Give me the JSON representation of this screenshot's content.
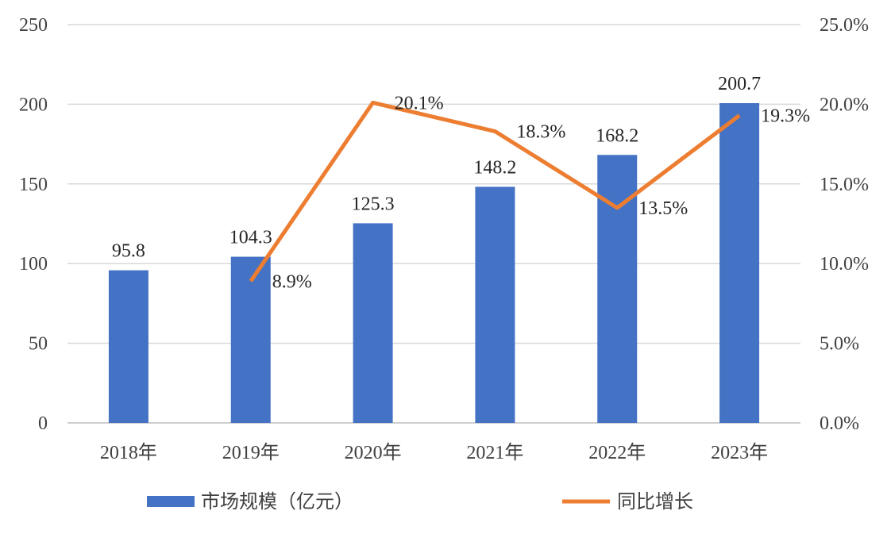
{
  "chart_data": {
    "type": "bar",
    "categories": [
      "2018年",
      "2019年",
      "2020年",
      "2021年",
      "2022年",
      "2023年"
    ],
    "series": [
      {
        "name": "市场规模（亿元）",
        "type": "bar",
        "axis": "left",
        "color": "#4472C4",
        "values": [
          95.8,
          104.3,
          125.3,
          148.2,
          168.2,
          200.7
        ]
      },
      {
        "name": "同比增长",
        "type": "line",
        "axis": "right",
        "color": "#ED7D31",
        "values": [
          null,
          8.9,
          20.1,
          18.3,
          13.5,
          19.3
        ]
      }
    ],
    "bar_labels": [
      "95.8",
      "104.3",
      "125.3",
      "148.2",
      "168.2",
      "200.7"
    ],
    "line_labels": [
      "",
      "8.9%",
      "20.1%",
      "18.3%",
      "13.5%",
      "19.3%"
    ],
    "y_left": {
      "ylim": [
        0,
        250
      ],
      "ticks": [
        "0",
        "50",
        "100",
        "150",
        "200",
        "250"
      ]
    },
    "y_right": {
      "ylim": [
        0,
        25
      ],
      "ticks": [
        "0.0%",
        "5.0%",
        "10.0%",
        "15.0%",
        "20.0%",
        "25.0%"
      ]
    },
    "grid": true,
    "legend_position": "bottom"
  }
}
